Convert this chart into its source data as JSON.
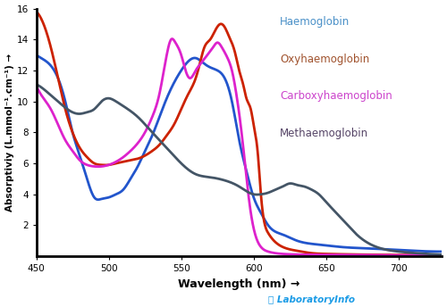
{
  "title": "",
  "xlabel": "Wavelength (nm) →",
  "ylabel": "Absorptiviy (L.mmol⁻¹.cm⁻¹) →",
  "xlim": [
    450,
    730
  ],
  "ylim": [
    0,
    16
  ],
  "yticks": [
    2,
    4,
    6,
    8,
    10,
    12,
    14,
    16
  ],
  "xticks": [
    450,
    500,
    550,
    600,
    650,
    700
  ],
  "background_color": "#ffffff",
  "legend_labels": [
    "Haemoglobin",
    "Oxyhaemoglobin",
    "Carboxyhaemoglobin",
    "Methaemoglobin"
  ],
  "legend_colors": [
    "#4a90c8",
    "#a0522d",
    "#cc44cc",
    "#554466"
  ],
  "haemoglobin": {
    "color": "#2255cc",
    "x": [
      450,
      458,
      465,
      470,
      475,
      480,
      485,
      490,
      495,
      500,
      505,
      510,
      515,
      520,
      525,
      530,
      535,
      540,
      545,
      550,
      555,
      560,
      565,
      570,
      575,
      580,
      585,
      590,
      595,
      600,
      605,
      610,
      620,
      630,
      640,
      650,
      660,
      680,
      700,
      730
    ],
    "y": [
      13.0,
      12.5,
      11.5,
      10.0,
      8.0,
      6.5,
      5.0,
      3.8,
      3.7,
      3.8,
      4.0,
      4.3,
      5.0,
      5.8,
      6.8,
      7.8,
      9.0,
      10.2,
      11.2,
      12.0,
      12.6,
      12.8,
      12.5,
      12.2,
      12.0,
      11.5,
      10.0,
      7.5,
      5.5,
      3.8,
      2.8,
      2.0,
      1.4,
      1.0,
      0.8,
      0.7,
      0.6,
      0.5,
      0.4,
      0.3
    ]
  },
  "oxyhaemoglobin": {
    "color": "#cc2200",
    "x": [
      450,
      455,
      460,
      465,
      470,
      475,
      480,
      485,
      490,
      495,
      500,
      505,
      510,
      515,
      520,
      525,
      530,
      535,
      540,
      545,
      550,
      555,
      560,
      563,
      566,
      570,
      573,
      577,
      580,
      583,
      587,
      590,
      593,
      595,
      598,
      600,
      603,
      605,
      610,
      620,
      630,
      640,
      650,
      680,
      730
    ],
    "y": [
      15.8,
      15.0,
      13.5,
      11.5,
      9.5,
      8.0,
      7.0,
      6.4,
      6.0,
      5.9,
      5.9,
      6.0,
      6.1,
      6.2,
      6.3,
      6.5,
      6.8,
      7.2,
      7.8,
      8.5,
      9.5,
      10.5,
      11.5,
      12.5,
      13.5,
      14.0,
      14.5,
      15.0,
      14.8,
      14.2,
      13.2,
      12.0,
      11.0,
      10.2,
      9.5,
      8.5,
      6.5,
      4.0,
      1.5,
      0.6,
      0.35,
      0.2,
      0.15,
      0.1,
      0.08
    ]
  },
  "carboxyhaemoglobin": {
    "color": "#dd22cc",
    "x": [
      450,
      455,
      460,
      465,
      470,
      475,
      480,
      485,
      490,
      495,
      500,
      505,
      510,
      515,
      520,
      525,
      530,
      535,
      540,
      543,
      546,
      550,
      553,
      556,
      560,
      564,
      568,
      572,
      575,
      578,
      582,
      585,
      588,
      591,
      594,
      597,
      600,
      605,
      610,
      620,
      640,
      660,
      700,
      730
    ],
    "y": [
      11.0,
      10.2,
      9.5,
      8.5,
      7.5,
      6.8,
      6.2,
      5.9,
      5.8,
      5.8,
      5.9,
      6.1,
      6.4,
      6.8,
      7.3,
      8.0,
      9.0,
      10.5,
      13.0,
      14.0,
      13.8,
      13.0,
      12.0,
      11.5,
      12.0,
      12.5,
      13.0,
      13.5,
      13.8,
      13.5,
      12.8,
      12.0,
      10.5,
      8.5,
      6.0,
      3.5,
      1.8,
      0.6,
      0.3,
      0.15,
      0.1,
      0.08,
      0.06,
      0.05
    ]
  },
  "methaemoglobin": {
    "color": "#445566",
    "x": [
      450,
      455,
      460,
      465,
      470,
      475,
      480,
      485,
      490,
      495,
      500,
      505,
      510,
      520,
      530,
      540,
      550,
      560,
      570,
      580,
      590,
      595,
      600,
      605,
      610,
      615,
      620,
      625,
      630,
      635,
      640,
      645,
      650,
      655,
      660,
      665,
      670,
      680,
      700,
      720,
      730
    ],
    "y": [
      11.1,
      10.8,
      10.4,
      10.0,
      9.6,
      9.3,
      9.2,
      9.3,
      9.5,
      10.0,
      10.2,
      10.0,
      9.7,
      9.0,
      8.0,
      7.0,
      6.0,
      5.3,
      5.1,
      4.9,
      4.5,
      4.2,
      4.0,
      4.0,
      4.1,
      4.3,
      4.5,
      4.7,
      4.6,
      4.5,
      4.3,
      4.0,
      3.5,
      3.0,
      2.5,
      2.0,
      1.5,
      0.8,
      0.3,
      0.15,
      0.1
    ]
  }
}
